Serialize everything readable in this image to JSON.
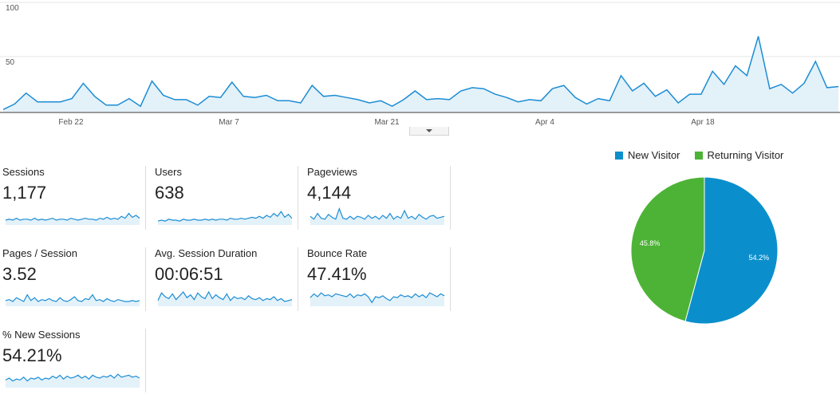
{
  "colors": {
    "line": "#1c8dd4",
    "area": "#e3f1f9",
    "new_visitor": "#0a8fcc",
    "returning_visitor": "#4db336"
  },
  "chart_data": [
    {
      "type": "area",
      "ylim": [
        0,
        100
      ],
      "yticks": [
        "100",
        "50"
      ],
      "xticks": [
        "Feb 22",
        "Mar 7",
        "Mar 21",
        "Apr 4",
        "Apr 18"
      ],
      "x_start": "Feb 14",
      "x_end": "Apr 30",
      "values": [
        2,
        7,
        17,
        9,
        9,
        9,
        12,
        26,
        14,
        6,
        6,
        12,
        5,
        28,
        15,
        11,
        11,
        6,
        14,
        13,
        27,
        14,
        13,
        15,
        10,
        10,
        8,
        24,
        14,
        15,
        13,
        11,
        8,
        10,
        5,
        11,
        19,
        11,
        12,
        11,
        19,
        22,
        21,
        16,
        13,
        9,
        11,
        10,
        21,
        24,
        13,
        7,
        12,
        10,
        33,
        19,
        26,
        14,
        20,
        8,
        16,
        16,
        37,
        25,
        42,
        33,
        69,
        21,
        25,
        17,
        26,
        46,
        22,
        23
      ]
    },
    {
      "type": "pie",
      "slices": [
        {
          "label": "New Visitor",
          "value": 54.2,
          "text": "54.2%"
        },
        {
          "label": "Returning Visitor",
          "value": 45.8,
          "text": "45.8%"
        }
      ]
    }
  ],
  "metrics": [
    {
      "label": "Sessions",
      "value": "1,177",
      "spark": [
        5,
        6,
        5,
        7,
        5,
        6,
        6,
        5,
        7,
        5,
        6,
        5,
        6,
        7,
        5,
        6,
        6,
        5,
        7,
        6,
        5,
        6,
        7,
        6,
        6,
        5,
        7,
        6,
        8,
        6,
        7,
        6,
        9,
        7,
        12,
        8,
        10,
        7
      ],
      "spark_max": 20
    },
    {
      "label": "Users",
      "value": "638",
      "spark": [
        4,
        5,
        4,
        6,
        5,
        5,
        4,
        6,
        5,
        5,
        6,
        5,
        5,
        6,
        5,
        6,
        5,
        6,
        6,
        5,
        7,
        6,
        6,
        7,
        6,
        7,
        8,
        7,
        9,
        7,
        10,
        8,
        12,
        9,
        14,
        8,
        11,
        7
      ],
      "spark_max": 20
    },
    {
      "label": "Pageviews",
      "value": "4,144",
      "spark": [
        9,
        6,
        12,
        7,
        6,
        11,
        8,
        6,
        17,
        7,
        6,
        9,
        6,
        9,
        8,
        6,
        10,
        7,
        9,
        6,
        10,
        7,
        12,
        6,
        9,
        7,
        15,
        7,
        9,
        6,
        11,
        8,
        6,
        9,
        10,
        7,
        8,
        9
      ],
      "spark_max": 20
    },
    {
      "label": "Pages / Session",
      "value": "3.52",
      "spark": [
        6,
        7,
        5,
        9,
        7,
        5,
        12,
        6,
        9,
        5,
        7,
        6,
        8,
        6,
        5,
        9,
        6,
        5,
        7,
        10,
        6,
        5,
        8,
        7,
        12,
        6,
        7,
        5,
        8,
        6,
        5,
        7,
        6,
        5,
        5,
        6,
        5,
        6
      ],
      "spark_max": 20
    },
    {
      "label": "Avg. Session Duration",
      "value": "00:06:51",
      "spark": [
        6,
        14,
        10,
        8,
        13,
        7,
        11,
        15,
        9,
        12,
        7,
        14,
        10,
        8,
        15,
        8,
        12,
        9,
        7,
        13,
        6,
        10,
        8,
        9,
        7,
        11,
        8,
        7,
        9,
        6,
        8,
        7,
        10,
        6,
        8,
        5,
        6,
        7
      ],
      "spark_max": 20
    },
    {
      "label": "Bounce Rate",
      "value": "47.41%",
      "spark": [
        9,
        13,
        10,
        14,
        11,
        12,
        10,
        13,
        12,
        11,
        10,
        13,
        9,
        12,
        11,
        13,
        10,
        4,
        10,
        9,
        11,
        8,
        6,
        10,
        9,
        12,
        10,
        11,
        9,
        13,
        10,
        12,
        9,
        14,
        12,
        10,
        13,
        11
      ],
      "spark_max": 20
    },
    {
      "label": "% New Sessions",
      "value": "54.21%",
      "spark": [
        8,
        10,
        7,
        9,
        8,
        11,
        7,
        10,
        9,
        11,
        8,
        10,
        9,
        12,
        10,
        13,
        9,
        12,
        10,
        11,
        13,
        10,
        12,
        9,
        13,
        11,
        10,
        12,
        11,
        13,
        10,
        14,
        11,
        12,
        13,
        11,
        12,
        10
      ],
      "spark_max": 20
    }
  ]
}
